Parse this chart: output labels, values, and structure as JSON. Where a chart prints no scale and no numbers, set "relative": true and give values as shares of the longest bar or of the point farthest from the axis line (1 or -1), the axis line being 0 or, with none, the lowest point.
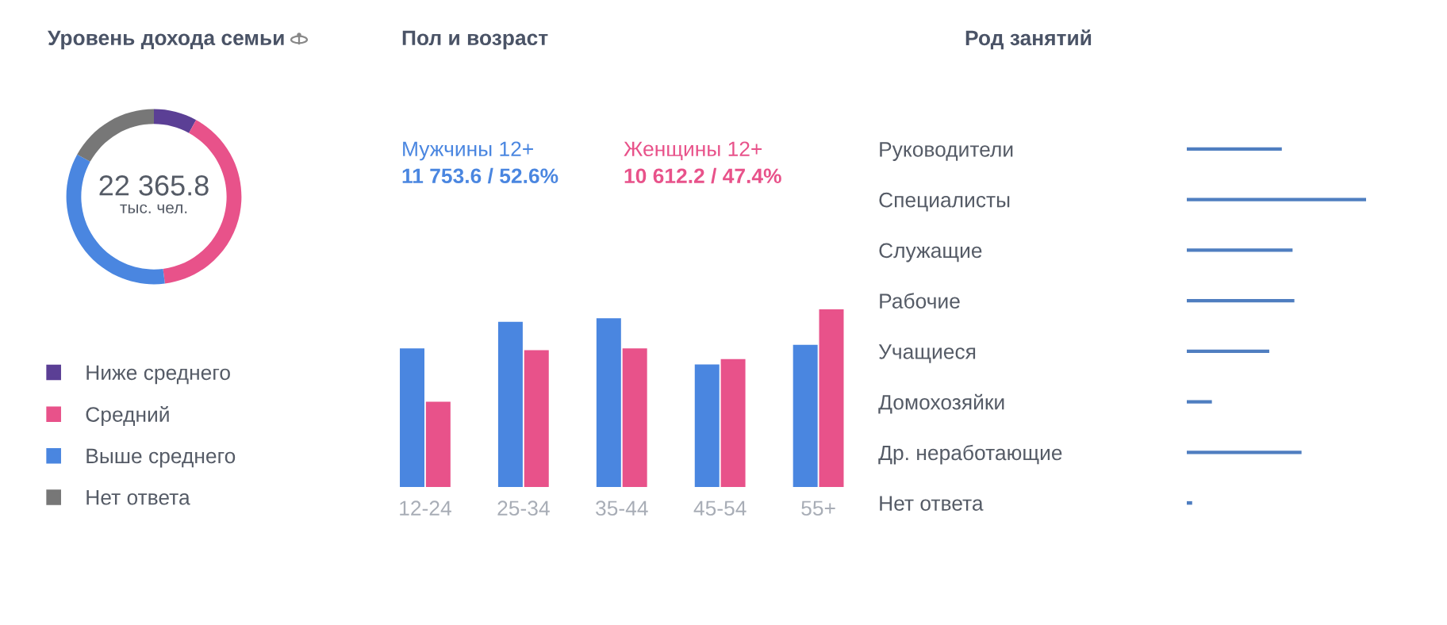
{
  "chart_data": [
    {
      "type": "donut",
      "title": "Уровень дохода семьи",
      "categories": [
        "Ниже среднего",
        "Средний",
        "Выше среднего",
        "Нет ответа"
      ],
      "values": [
        8,
        40,
        35,
        17
      ],
      "colors": [
        "#5b3f95",
        "#e8528a",
        "#4a86e0",
        "#777777"
      ],
      "annotations": [
        "22 365.8",
        "тыс. чел."
      ],
      "legend": "bottom"
    },
    {
      "type": "bar",
      "title": "Пол и возраст",
      "relative": true,
      "categories": [
        "12-24",
        "25-34",
        "35-44",
        "45-54",
        "55+"
      ],
      "series": [
        {
          "name": "Мужчины 12+",
          "color": "#4a86e0",
          "values": [
            0.78,
            0.93,
            0.95,
            0.69,
            0.8
          ]
        },
        {
          "name": "Женщины 12+",
          "color": "#e8528a",
          "values": [
            0.48,
            0.77,
            0.78,
            0.72,
            1
          ]
        }
      ],
      "annotations": [
        "11 753.6 / 52.6%",
        "10 612.2 / 47.4%"
      ],
      "legend": "top left"
    },
    {
      "type": "bar",
      "title": "Род занятий",
      "relative": true,
      "orientation": "horizontal",
      "categories": [
        "Руководители",
        "Специалисты",
        "Служащие",
        "Рабочие",
        "Учащиеся",
        "Домохозяйки",
        "Др. неработающие",
        "Нет ответа"
      ],
      "values": [
        0.53,
        1,
        0.59,
        0.6,
        0.46,
        0.14,
        0.64,
        0.03
      ],
      "color": "#4f7ec0"
    }
  ]
}
